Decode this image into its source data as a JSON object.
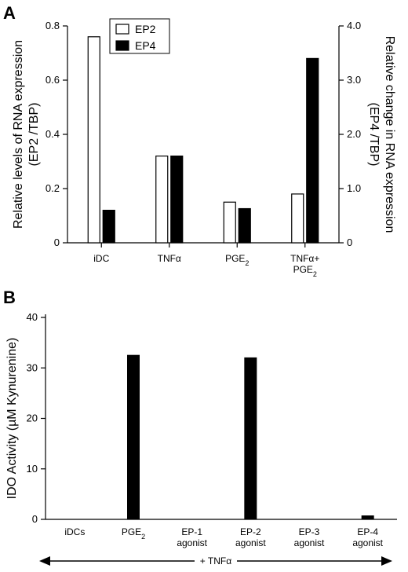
{
  "panels": {
    "a": "A",
    "b": "B"
  },
  "chart_data": [
    {
      "type": "bar",
      "categories": [
        "iDC",
        "TNFα",
        "PGE₂",
        "TNFα+\nPGE₂"
      ],
      "series": [
        {
          "name": "EP2",
          "axis": "left",
          "color": "#ffffff",
          "values": [
            0.76,
            0.32,
            0.15,
            0.18
          ]
        },
        {
          "name": "EP4",
          "axis": "right",
          "color": "#000000",
          "values": [
            0.6,
            1.6,
            0.63,
            3.4
          ]
        }
      ],
      "ylabel": "Relative levels of RNA expression\n(EP2 /TBP)",
      "y2label": "Relative change in RNA expression\n(EP4 /TBP)",
      "ylim": [
        0,
        0.8
      ],
      "y2lim": [
        0,
        4.0
      ],
      "yticks": [
        "0",
        "0.2",
        "0.4",
        "0.6",
        "0.8"
      ],
      "y2ticks": [
        "0",
        "1.0",
        "2.0",
        "3.0",
        "4.0"
      ],
      "legend": "top-left",
      "grid": false
    },
    {
      "type": "bar",
      "categories": [
        "iDCs",
        "PGE₂",
        "EP-1\nagonist",
        "EP-2\nagonist",
        "EP-3\nagonist",
        "EP-4\nagonist"
      ],
      "series": [
        {
          "color": "#000000",
          "values": [
            0,
            32.5,
            0,
            32,
            0,
            0.7
          ]
        }
      ],
      "ylabel": "IDO Activity (µM Kynurenine)",
      "ylim": [
        0,
        40
      ],
      "yticks": [
        "0",
        "10",
        "20",
        "30",
        "40"
      ],
      "annotation": "+ TNFα",
      "grid": false
    }
  ]
}
